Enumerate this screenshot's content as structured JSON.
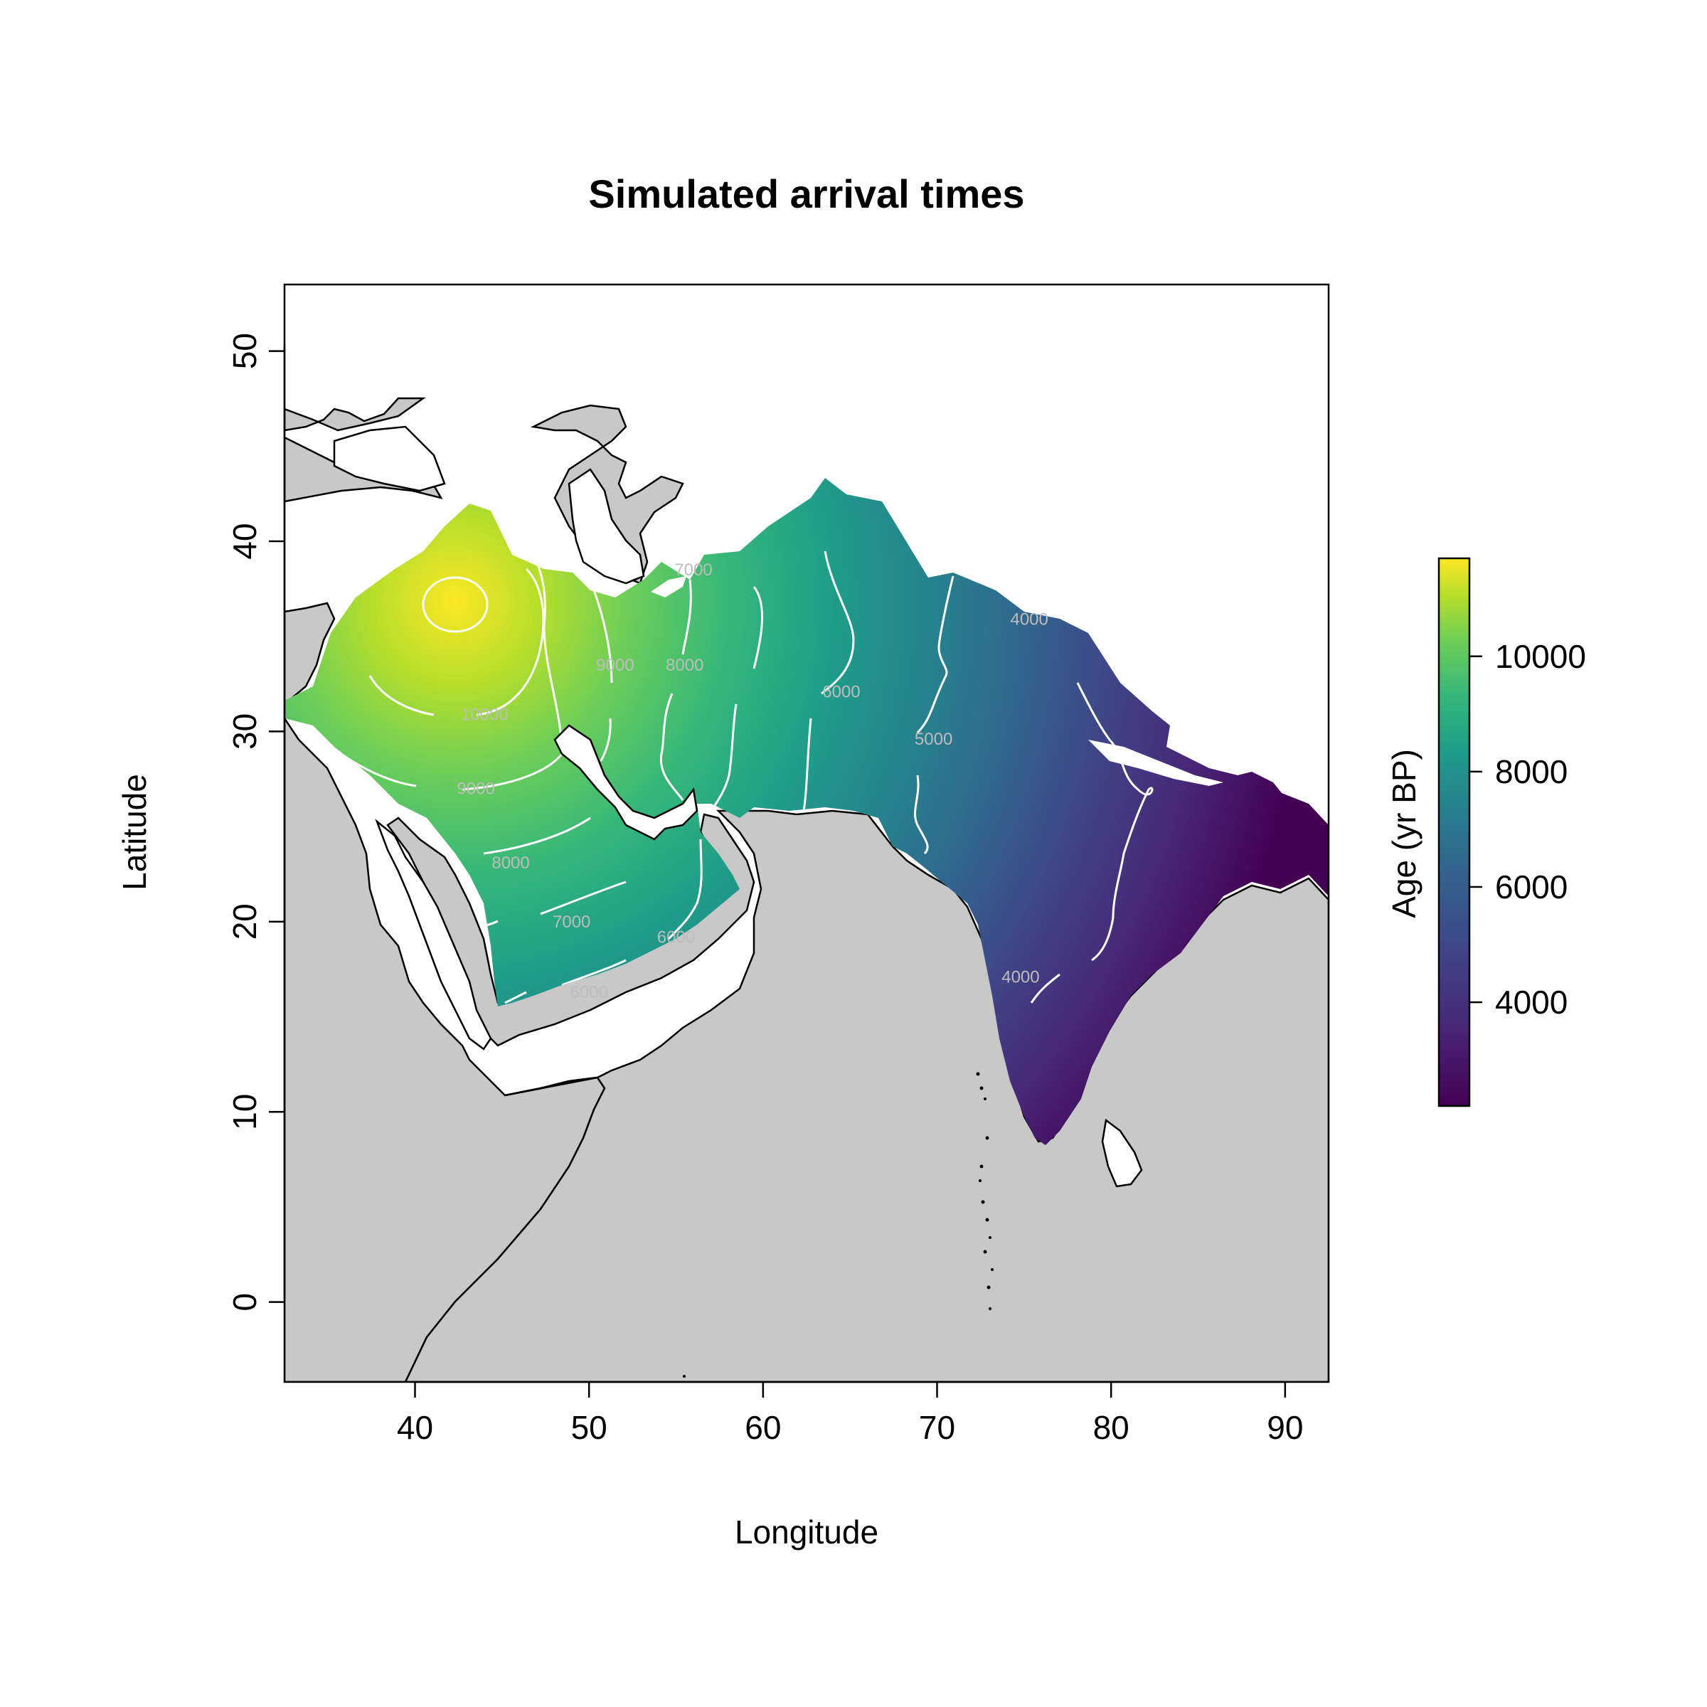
{
  "chart_data": {
    "type": "heatmap",
    "title": "Simulated arrival times",
    "xlabel": "Longitude",
    "ylabel": "Latitude",
    "xlim": [
      32.5,
      92.5
    ],
    "ylim": [
      -4.2,
      53.5
    ],
    "x_ticks": [
      "40",
      "50",
      "60",
      "70",
      "80",
      "90"
    ],
    "y_ticks": [
      "0",
      "10",
      "20",
      "30",
      "40",
      "50"
    ],
    "grid": false,
    "legend": {
      "title": "Age (yr BP)",
      "position": "right",
      "range": [
        2200,
        11700
      ],
      "ticks": [
        "4000",
        "6000",
        "8000",
        "10000"
      ],
      "palette": [
        "#440154",
        "#3b528b",
        "#21908c",
        "#5dc863",
        "#fde725"
      ]
    },
    "colors": {
      "land_no_data": "#c8c8c8",
      "sea": "#ffffff",
      "coastline": "#000000",
      "contours": "#ffffff"
    },
    "origin": {
      "lon": 42.5,
      "lat": 36.0,
      "max_age": 11700
    },
    "contour_labels": [
      {
        "text": "10000",
        "lon": 44.0,
        "lat": 30.6
      },
      {
        "text": "9000",
        "lon": 43.5,
        "lat": 26.7
      },
      {
        "text": "8000",
        "lon": 45.5,
        "lat": 22.8
      },
      {
        "text": "7000",
        "lon": 49.0,
        "lat": 19.7
      },
      {
        "text": "6000",
        "lon": 50.0,
        "lat": 16.0
      },
      {
        "text": "6000",
        "lon": 55.0,
        "lat": 18.9
      },
      {
        "text": "9000",
        "lon": 51.5,
        "lat": 33.2
      },
      {
        "text": "8000",
        "lon": 55.5,
        "lat": 33.2
      },
      {
        "text": "7000",
        "lon": 56.0,
        "lat": 38.2
      },
      {
        "text": "6000",
        "lon": 64.5,
        "lat": 31.8
      },
      {
        "text": "5000",
        "lon": 69.8,
        "lat": 29.3
      },
      {
        "text": "4000",
        "lon": 75.3,
        "lat": 35.6
      },
      {
        "text": "4000",
        "lon": 74.8,
        "lat": 16.8
      }
    ]
  }
}
